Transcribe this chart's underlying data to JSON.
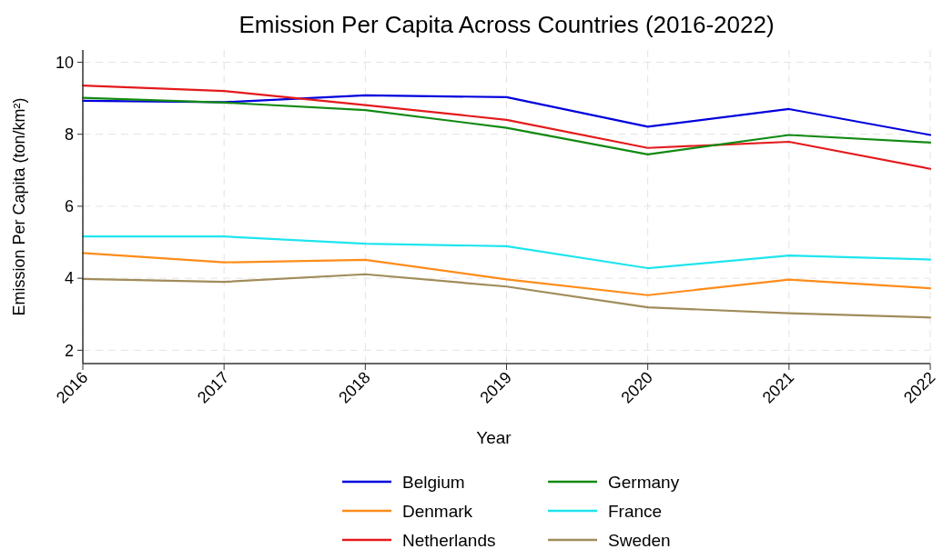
{
  "chart_data": {
    "type": "line",
    "title": "Emission Per Capita Across Countries (2016-2022)",
    "xlabel": "Year",
    "ylabel": "Emission Per Capita (ton/km²)",
    "x": [
      2016,
      2017,
      2018,
      2019,
      2020,
      2021,
      2022
    ],
    "series": [
      {
        "name": "Belgium",
        "color": "#0000dd",
        "values": [
          8.93,
          8.89,
          9.08,
          9.03,
          8.21,
          8.7,
          7.98
        ]
      },
      {
        "name": "Denmark",
        "color": "#ff8c1a",
        "values": [
          4.7,
          4.44,
          4.51,
          3.97,
          3.53,
          3.96,
          3.72
        ]
      },
      {
        "name": "Netherlands",
        "color": "#e41a1c",
        "values": [
          9.35,
          9.2,
          8.81,
          8.4,
          7.62,
          7.79,
          7.04
        ]
      },
      {
        "name": "Germany",
        "color": "#138a13",
        "values": [
          9.01,
          8.88,
          8.67,
          8.18,
          7.44,
          7.98,
          7.77
        ]
      },
      {
        "name": "France",
        "color": "#1ee5ee",
        "values": [
          5.16,
          5.16,
          4.96,
          4.89,
          4.28,
          4.63,
          4.52
        ]
      },
      {
        "name": "Sweden",
        "color": "#a08c5a",
        "values": [
          3.98,
          3.9,
          4.11,
          3.77,
          3.19,
          3.03,
          2.91
        ]
      }
    ],
    "xlim": [
      2016,
      2022
    ],
    "xticks": [
      2016,
      2017,
      2018,
      2019,
      2020,
      2021,
      2022
    ],
    "ylim": [
      1.63,
      10.34
    ],
    "yticks": [
      2,
      4,
      6,
      8,
      10
    ],
    "grid": true,
    "legend": "bottom",
    "line_style": "solid",
    "marker": "none"
  }
}
